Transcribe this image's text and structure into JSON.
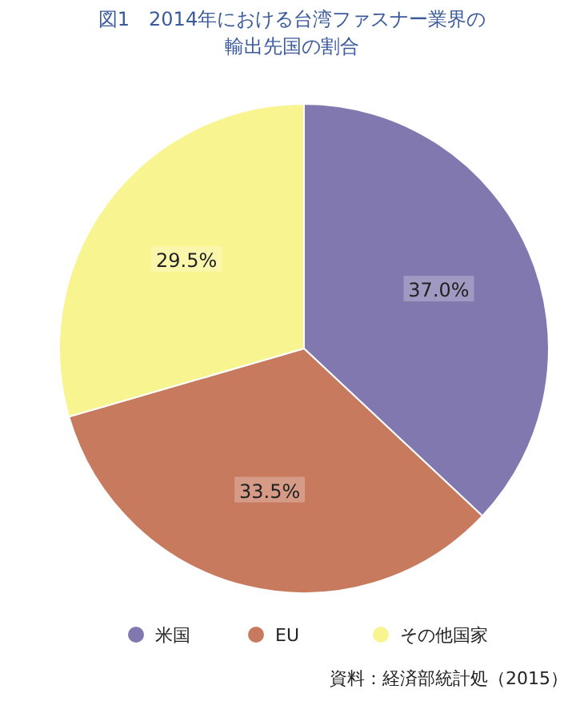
{
  "chart_data": {
    "type": "pie",
    "title": "図1　2014年における台湾ファスナー業界の輸出先国の割合",
    "categories": [
      "米国",
      "EU",
      "その他国家"
    ],
    "values": [
      37.0,
      33.5,
      29.5
    ],
    "value_labels": [
      "37.0%",
      "33.5%",
      "29.5%"
    ],
    "colors": [
      "#8078ae",
      "#c87a5f",
      "#f8f490"
    ],
    "legend": "bottom",
    "annotations": [
      "資料：経済部統計処（2015）"
    ]
  }
}
